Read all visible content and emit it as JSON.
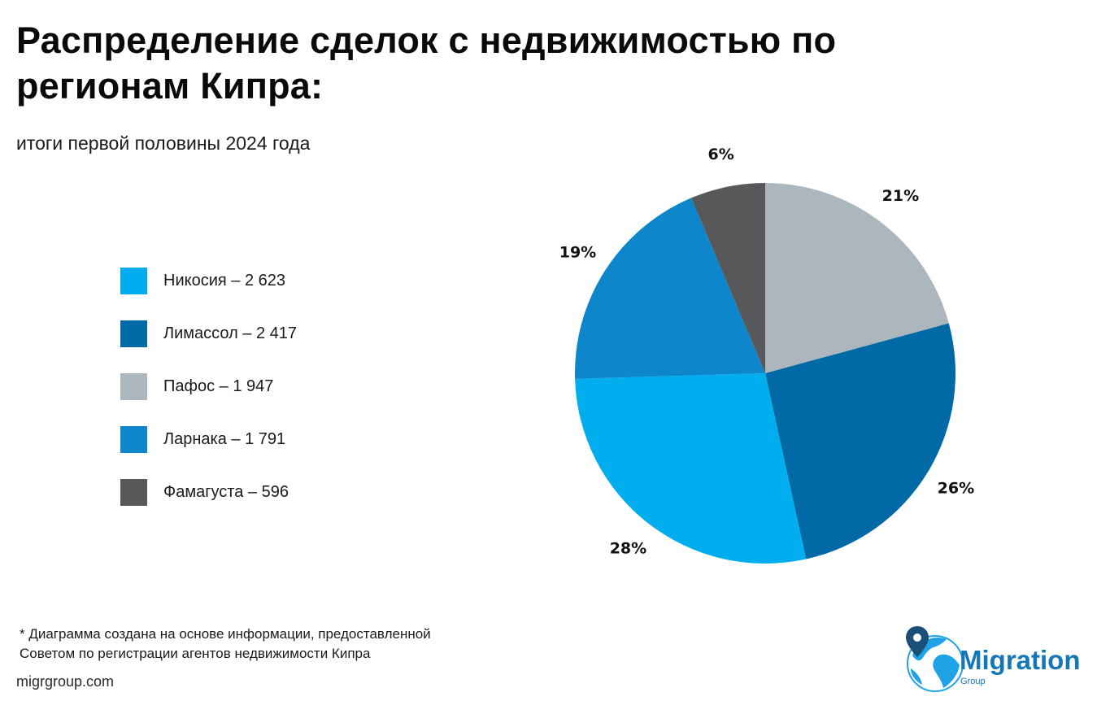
{
  "title": "Распределение сделок с недвижимостью по регионам Кипра:",
  "subtitle": "итоги первой половины 2024 года",
  "chart_data": {
    "type": "pie",
    "title": "Распределение сделок с недвижимостью по регионам Кипра:",
    "subtitle": "итоги первой половины 2024 года",
    "slices": [
      {
        "name": "Никосия",
        "value": 2623,
        "percent_label": "28%",
        "color": "#00aeef"
      },
      {
        "name": "Лимассол",
        "value": 2417,
        "percent_label": "26%",
        "color": "#0069a6"
      },
      {
        "name": "Пафос",
        "value": 1947,
        "percent_label": "21%",
        "color": "#acb6bd"
      },
      {
        "name": "Ларнака",
        "value": 1791,
        "percent_label": "19%",
        "color": "#0d86cc"
      },
      {
        "name": "Фамагуста",
        "value": 596,
        "percent_label": "6%",
        "color": "#58585a"
      }
    ],
    "legend": [
      {
        "label": "Никосия – 2 623",
        "color": "#00aeef"
      },
      {
        "label": "Лимассол – 2 417",
        "color": "#0069a6"
      },
      {
        "label": "Пафос – 1 947",
        "color": "#acb6bd"
      },
      {
        "label": "Ларнака – 1 791",
        "color": "#0d86cc"
      },
      {
        "label": "Фамагуста – 596",
        "color": "#58585a"
      }
    ],
    "legend_position": "left"
  },
  "footnote": {
    "line1": "* Диаграмма создана на основе информации, предоставленной",
    "line2": "Советом по регистрации агентов недвижимости Кипра"
  },
  "website": "migrgroup.com",
  "logo": {
    "name": "Migration",
    "sub": "Group",
    "icon": "globe-pin-icon",
    "color": "#1577b8"
  }
}
